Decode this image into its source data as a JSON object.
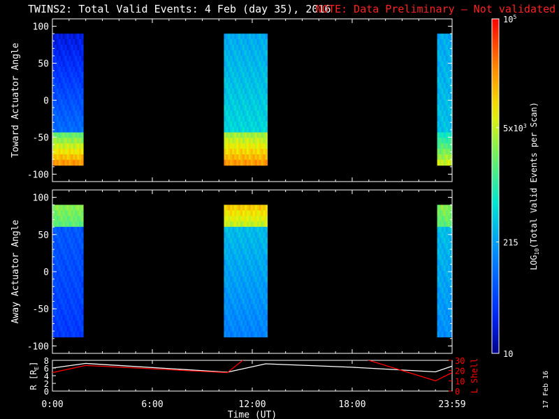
{
  "header": {
    "title": "TWINS2: Total Valid Events:  4 Feb (day  35), 2016",
    "note": "NOTE: Data Preliminary – Not validated"
  },
  "footer": {
    "print_date": "17 Feb 16"
  },
  "colors": {
    "note_red": "#ff2020",
    "r_line": "#ffffff",
    "lshell_line": "#ff0000",
    "background": "#000000"
  },
  "chart_data": [
    {
      "type": "heatmap",
      "panel": "toward",
      "ylabel": "Toward Actuator Angle",
      "ylim": [
        -110,
        110
      ],
      "yticks": [
        100,
        50,
        0,
        -50,
        -100
      ],
      "angle_range": [
        -88,
        90
      ],
      "scans": [
        {
          "t_start": 0.0,
          "t_end": 1.85,
          "low_level": 0.08,
          "mid_level": 0.3,
          "near_high": 0.55,
          "edge_level": 0.86
        },
        {
          "t_start": 10.3,
          "t_end": 12.9,
          "low_level": 0.35,
          "mid_level": 0.45,
          "near_high": 0.62,
          "edge_level": 0.85
        },
        {
          "t_start": 23.1,
          "t_end": 24.0,
          "low_level": 0.35,
          "mid_level": 0.4,
          "near_high": 0.45,
          "edge_level": 0.7
        }
      ],
      "xticks": [
        "0:00",
        "6:00",
        "12:00",
        "18:00",
        "23:59"
      ],
      "xlim": [
        0,
        24
      ]
    },
    {
      "type": "heatmap",
      "panel": "away",
      "ylabel": "Away Actuator Angle",
      "ylim": [
        -110,
        110
      ],
      "yticks": [
        100,
        50,
        0,
        -50,
        -100
      ],
      "angle_range": [
        -88,
        90
      ],
      "scans": [
        {
          "t_start": 0.0,
          "t_end": 1.85,
          "low_level": 0.15,
          "mid_level": 0.22,
          "near_high": 0.55,
          "edge_level": 0.62
        },
        {
          "t_start": 10.3,
          "t_end": 12.9,
          "low_level": 0.28,
          "mid_level": 0.4,
          "near_high": 0.65,
          "edge_level": 0.78
        },
        {
          "t_start": 23.1,
          "t_end": 24.0,
          "low_level": 0.3,
          "mid_level": 0.4,
          "near_high": 0.55,
          "edge_level": 0.62
        }
      ],
      "xticks": [
        "0:00",
        "6:00",
        "12:00",
        "18:00",
        "23:59"
      ],
      "xlim": [
        0,
        24
      ]
    },
    {
      "type": "line",
      "panel": "orbit",
      "xlabel": "Time (UT)",
      "xticks": [
        "0:00",
        "6:00",
        "12:00",
        "18:00",
        "23:59"
      ],
      "xlim": [
        0,
        24
      ],
      "left_axis": {
        "label": "R [R",
        "label_sub": "E",
        "label_close": "]",
        "ylim": [
          0,
          8
        ],
        "yticks": [
          8,
          6,
          4,
          2,
          0
        ]
      },
      "right_axis": {
        "label": "L Shell",
        "ylim": [
          0,
          30
        ],
        "yticks": [
          30,
          20,
          10,
          0
        ]
      },
      "series": [
        {
          "axis": "left",
          "x": [
            0,
            2,
            10.5,
            12.8,
            18,
            23,
            24
          ],
          "y": [
            6.0,
            7.2,
            4.9,
            7.1,
            6.2,
            5.0,
            6.5
          ]
        },
        {
          "axis": "right",
          "x": [
            0,
            2,
            10.5,
            12.2,
            17,
            23,
            24
          ],
          "y": [
            18,
            25,
            18,
            40,
            40,
            10,
            18
          ]
        }
      ]
    }
  ],
  "colorbar": {
    "label": "LOG",
    "label_sub": "10",
    "label_rest": "(Total Valid  Events per Scan)",
    "scale": "log",
    "range": [
      10,
      100000
    ],
    "ticks": [
      {
        "value": 100000,
        "base": "10",
        "exp": "5"
      },
      {
        "value": 5000,
        "base": "5x10",
        "exp": "3"
      },
      {
        "value": 215,
        "base": "215",
        "exp": ""
      },
      {
        "value": 10,
        "base": "10",
        "exp": ""
      }
    ]
  }
}
